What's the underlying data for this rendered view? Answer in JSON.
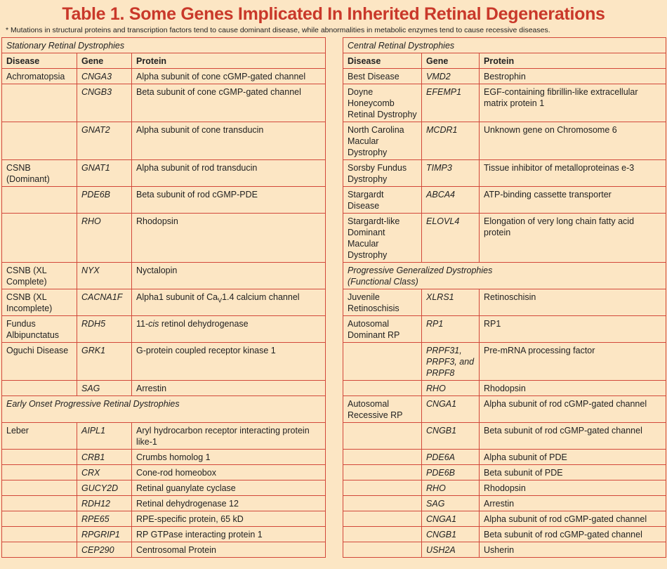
{
  "title": "Table 1. Some Genes Implicated In Inherited Retinal Degenerations",
  "note": "* Mutations in structural proteins and transcription factors tend to cause dominant disease, while abnormalities in metabolic enzymes tend to cause recessive diseases.",
  "rows": [
    {
      "left": {
        "section": "Stationary Retinal Dystrophies"
      },
      "right": {
        "section": "Central Retinal Dystrophies"
      }
    },
    {
      "left": {
        "header": [
          "Disease",
          "Gene",
          "Protein"
        ]
      },
      "right": {
        "header": [
          "Disease",
          "Gene",
          "Protein"
        ]
      }
    },
    {
      "left": {
        "cells": [
          "Achromatopsia",
          "CNGA3",
          "Alpha subunit of cone cGMP-gated channel"
        ]
      },
      "right": {
        "cells": [
          "Best Disease",
          "VMD2",
          "Bestrophin"
        ]
      }
    },
    {
      "left": {
        "cells": [
          null,
          "CNGB3",
          "Beta subunit of cone cGMP-gated channel"
        ]
      },
      "right": {
        "cells": [
          "Doyne Honeycomb Retinal Dystrophy",
          "EFEMP1",
          "EGF-containing fibrillin-like extracellular matrix protein 1"
        ]
      }
    },
    {
      "left": {
        "cells": [
          null,
          "GNAT2",
          "Alpha subunit of cone transducin"
        ]
      },
      "right": {
        "cells": [
          "North Carolina Macular Dystrophy",
          "MCDR1",
          "Unknown gene on Chromosome 6"
        ]
      }
    },
    {
      "left": {
        "cells": [
          "CSNB (Dominant)",
          "GNAT1",
          "Alpha subunit of rod transducin"
        ]
      },
      "right": {
        "cells": [
          "Sorsby Fundus Dystrophy",
          "TIMP3",
          "Tissue inhibitor of metalloproteinas e-3"
        ]
      }
    },
    {
      "left": {
        "cells": [
          null,
          "PDE6B",
          "Beta subunit of rod cGMP-PDE"
        ]
      },
      "right": {
        "cells": [
          "Stargardt Disease",
          "ABCA4",
          "ATP-binding cassette transporter"
        ]
      }
    },
    {
      "left": {
        "cells": [
          null,
          "RHO",
          "Rhodopsin"
        ]
      },
      "right": {
        "cells": [
          "Stargardt-like Dominant Macular Dystrophy",
          "ELOVL4",
          "Elongation of very long chain fatty acid protein"
        ]
      }
    },
    {
      "left": {
        "cells": [
          "CSNB (XL Complete)",
          "NYX",
          "Nyctalopin"
        ]
      },
      "right": {
        "section": [
          "Progressive Generalized Dystrophies",
          "(Functional Class)"
        ]
      }
    },
    {
      "left": {
        "cells": [
          "CSNB (XL Incomplete)",
          "CACNA1F",
          [
            {
              "text": "Alpha1 subunit of Ca"
            },
            {
              "text": "V",
              "style": "sub"
            },
            {
              "text": "1.4 calcium channel"
            }
          ]
        ]
      },
      "right": {
        "cells": [
          "Juvenile Retinoschisis",
          "XLRS1",
          "Retinoschisin"
        ]
      }
    },
    {
      "left": {
        "cells": [
          "Fundus Albipunctatus",
          "RDH5",
          [
            {
              "text": "11-"
            },
            {
              "text": "cis",
              "style": "italic"
            },
            {
              "text": " retinol dehydrogenase"
            }
          ]
        ]
      },
      "right": {
        "cells": [
          "Autosomal Dominant RP",
          "RP1",
          "RP1"
        ]
      }
    },
    {
      "left": {
        "cells": [
          "Oguchi Disease",
          "GRK1",
          "G-protein coupled receptor kinase 1"
        ]
      },
      "right": {
        "cells": [
          null,
          "PRPF31, PRPF3, and PRPF8",
          "Pre-mRNA processing factor"
        ]
      }
    },
    {
      "left": {
        "cells": [
          null,
          "SAG",
          "Arrestin"
        ]
      },
      "right": {
        "cells": [
          null,
          "RHO",
          "Rhodopsin"
        ]
      }
    },
    {
      "left": {
        "section": "Early Onset Progressive Retinal Dystrophies"
      },
      "right": {
        "cells": [
          "Autosomal Recessive RP",
          "CNGA1",
          "Alpha subunit of rod cGMP-gated channel"
        ]
      }
    },
    {
      "left": {
        "cells": [
          "Leber",
          "AIPL1",
          "Aryl hydrocarbon receptor interacting protein like-1"
        ]
      },
      "right": {
        "cells": [
          null,
          "CNGB1",
          "Beta subunit of rod cGMP-gated channel"
        ]
      }
    },
    {
      "left": {
        "cells": [
          null,
          "CRB1",
          "Crumbs homolog 1"
        ]
      },
      "right": {
        "cells": [
          null,
          "PDE6A",
          "Alpha subunit of PDE"
        ]
      }
    },
    {
      "left": {
        "cells": [
          null,
          "CRX",
          "Cone-rod homeobox"
        ]
      },
      "right": {
        "cells": [
          null,
          "PDE6B",
          "Beta subunit of PDE"
        ]
      }
    },
    {
      "left": {
        "cells": [
          null,
          "GUCY2D",
          "Retinal guanylate cyclase"
        ]
      },
      "right": {
        "cells": [
          null,
          "RHO",
          "Rhodopsin"
        ]
      }
    },
    {
      "left": {
        "cells": [
          null,
          "RDH12",
          "Retinal dehydrogenase 12"
        ]
      },
      "right": {
        "cells": [
          null,
          "SAG",
          "Arrestin"
        ]
      }
    },
    {
      "left": {
        "cells": [
          null,
          "RPE65",
          "RPE-specific protein, 65 kD"
        ]
      },
      "right": {
        "cells": [
          null,
          "CNGA1",
          "Alpha subunit of rod cGMP-gated channel"
        ]
      }
    },
    {
      "left": {
        "cells": [
          null,
          "RPGRIP1",
          "RP GTPase interacting protein 1"
        ]
      },
      "right": {
        "cells": [
          null,
          "CNGB1",
          "Beta subunit of rod cGMP-gated channel"
        ]
      }
    },
    {
      "left": {
        "cells": [
          null,
          "CEP290",
          "Centrosomal Protein"
        ]
      },
      "right": {
        "cells": [
          null,
          "USH2A",
          "Usherin"
        ]
      }
    }
  ]
}
